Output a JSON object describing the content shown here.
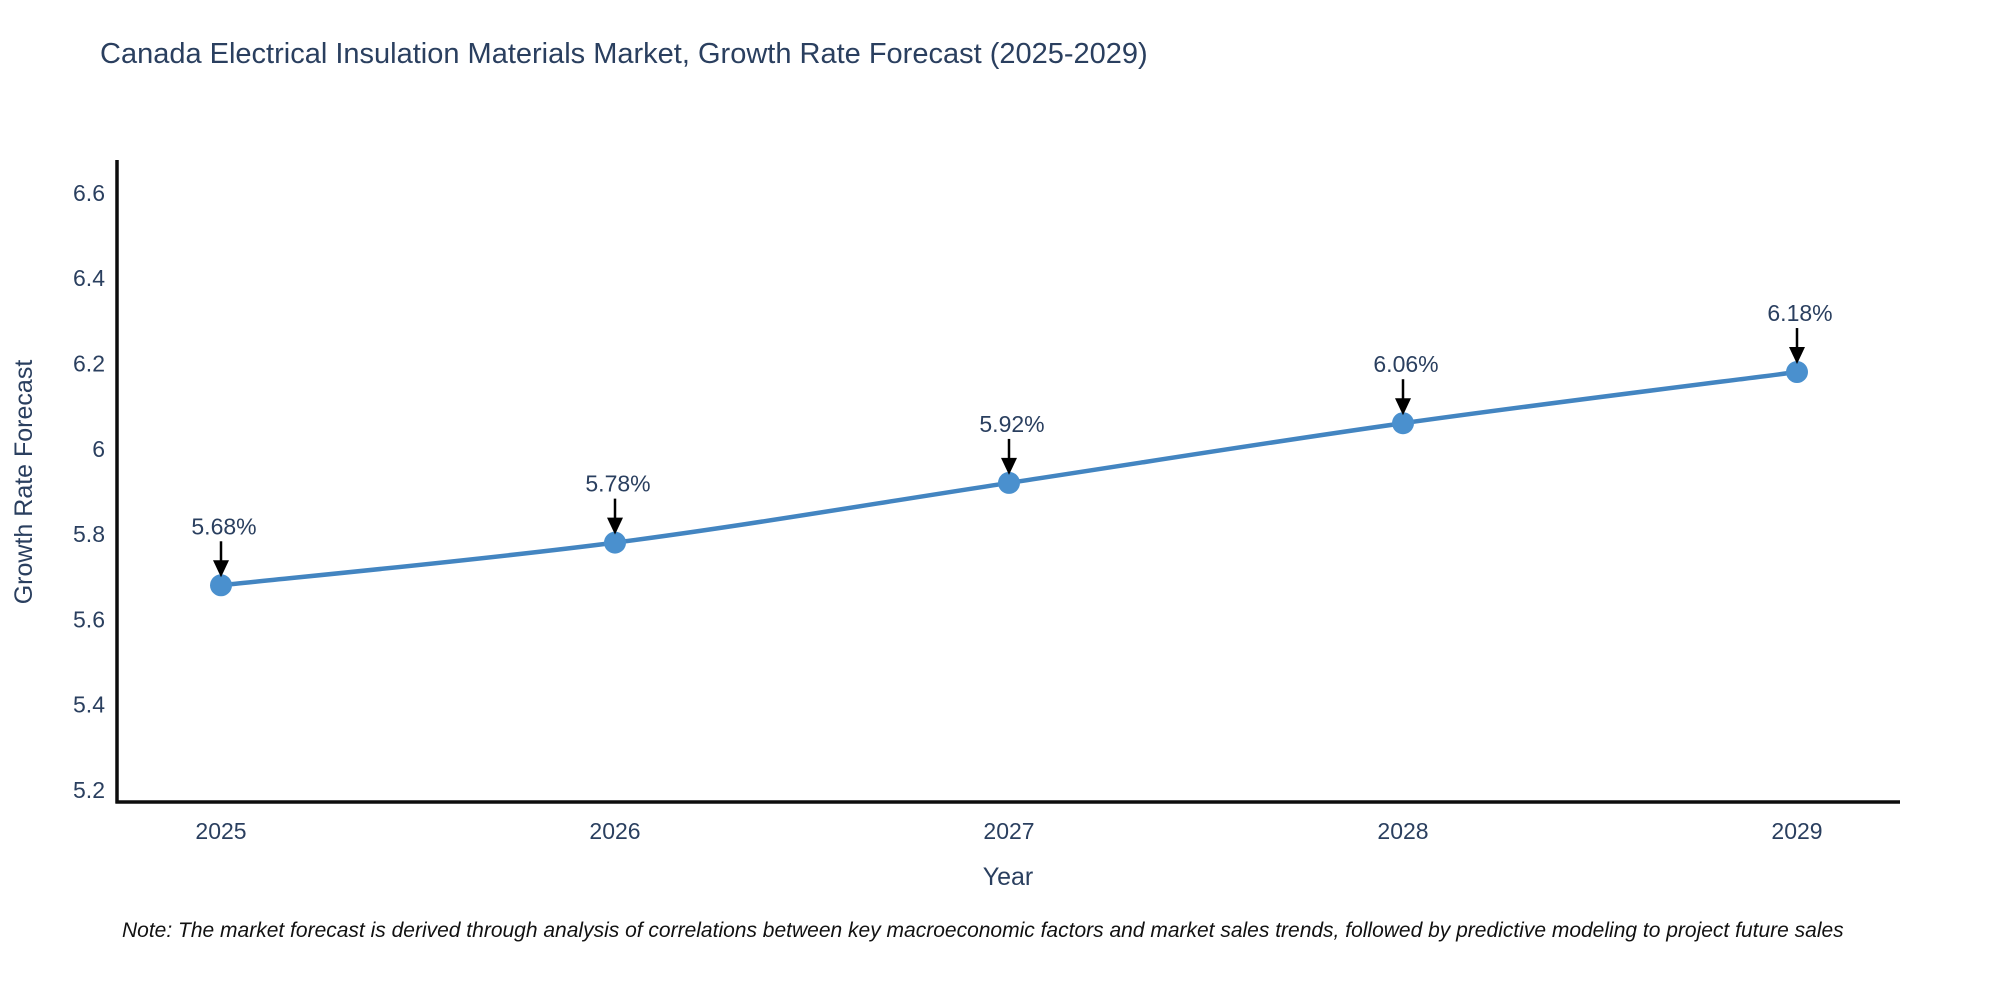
{
  "title": "Canada Electrical Insulation Materials Market, Growth Rate Forecast (2025-2029)",
  "note": "Note: The market forecast is derived through analysis of correlations between key macroeconomic factors and market sales trends, followed by predictive modeling to project future sales",
  "chart_data": {
    "type": "line",
    "title": "Canada Electrical Insulation Materials Market, Growth Rate Forecast (2025-2029)",
    "xlabel": "Year",
    "ylabel": "Growth Rate Forecast",
    "x": [
      2025,
      2026,
      2027,
      2028,
      2029
    ],
    "values": [
      5.68,
      5.78,
      5.92,
      6.06,
      6.18
    ],
    "point_labels": [
      "5.68%",
      "5.78%",
      "5.92%",
      "6.06%",
      "6.18%"
    ],
    "y_ticks": [
      5.2,
      5.4,
      5.6,
      5.8,
      6,
      6.2,
      6.4,
      6.6
    ],
    "ylim": [
      5.17,
      6.68
    ],
    "grid": false,
    "legend": null,
    "marker_style": "circle-with-down-arrow-annotation",
    "colors": {
      "line": "#4385c1",
      "marker": "#4a90ce",
      "axis": "#0d0d0d",
      "chart_text": "#2a3f5f",
      "annotation_arrow": "#000000",
      "note_text": "#111111",
      "background": "#ffffff"
    }
  }
}
